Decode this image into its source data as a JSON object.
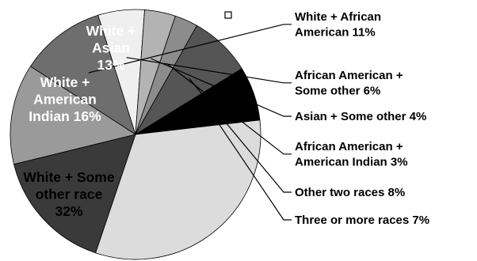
{
  "chart_data": {
    "type": "pie",
    "title": "",
    "slices": [
      {
        "label": "White + African American",
        "value": 11,
        "color": "#6e6e6e",
        "placement": "outside"
      },
      {
        "label": "African American + Some other",
        "value": 6,
        "color": "#efefef",
        "placement": "outside"
      },
      {
        "label": "Asian + Some other",
        "value": 4,
        "color": "#b3b3b3",
        "placement": "outside"
      },
      {
        "label": "African American + American Indian",
        "value": 3,
        "color": "#8c8c8c",
        "placement": "outside"
      },
      {
        "label": "Other two races",
        "value": 8,
        "color": "#555555",
        "placement": "outside"
      },
      {
        "label": "Three or more races",
        "value": 7,
        "color": "#000000",
        "placement": "outside"
      },
      {
        "label": "White + Some other race",
        "value": 32,
        "color": "#dcdcdc",
        "placement": "inside"
      },
      {
        "label": "White + American Indian",
        "value": 16,
        "color": "#3a3a3a",
        "placement": "inside"
      },
      {
        "label": "White + Asian",
        "value": 13,
        "color": "#9a9a9a",
        "placement": "inside"
      }
    ],
    "display_labels": [
      {
        "lines": [
          "White + African",
          "American 11%"
        ]
      },
      {
        "lines": [
          "African American +",
          "Some other 6%"
        ]
      },
      {
        "lines": [
          "Asian + Some other 4%"
        ]
      },
      {
        "lines": [
          "African American +",
          "American Indian 3%"
        ]
      },
      {
        "lines": [
          "Other two races 8%"
        ]
      },
      {
        "lines": [
          "Three or more races 7%"
        ]
      },
      {
        "lines": [
          "White + Some",
          "other race",
          "32%"
        ],
        "text_color": "#000000"
      },
      {
        "lines": [
          "White +",
          "American",
          "Indian 16%"
        ],
        "text_color": "#ffffff"
      },
      {
        "lines": [
          "White +",
          "Asian",
          "13%"
        ],
        "text_color": "#ffffff"
      }
    ],
    "legend": "none"
  }
}
